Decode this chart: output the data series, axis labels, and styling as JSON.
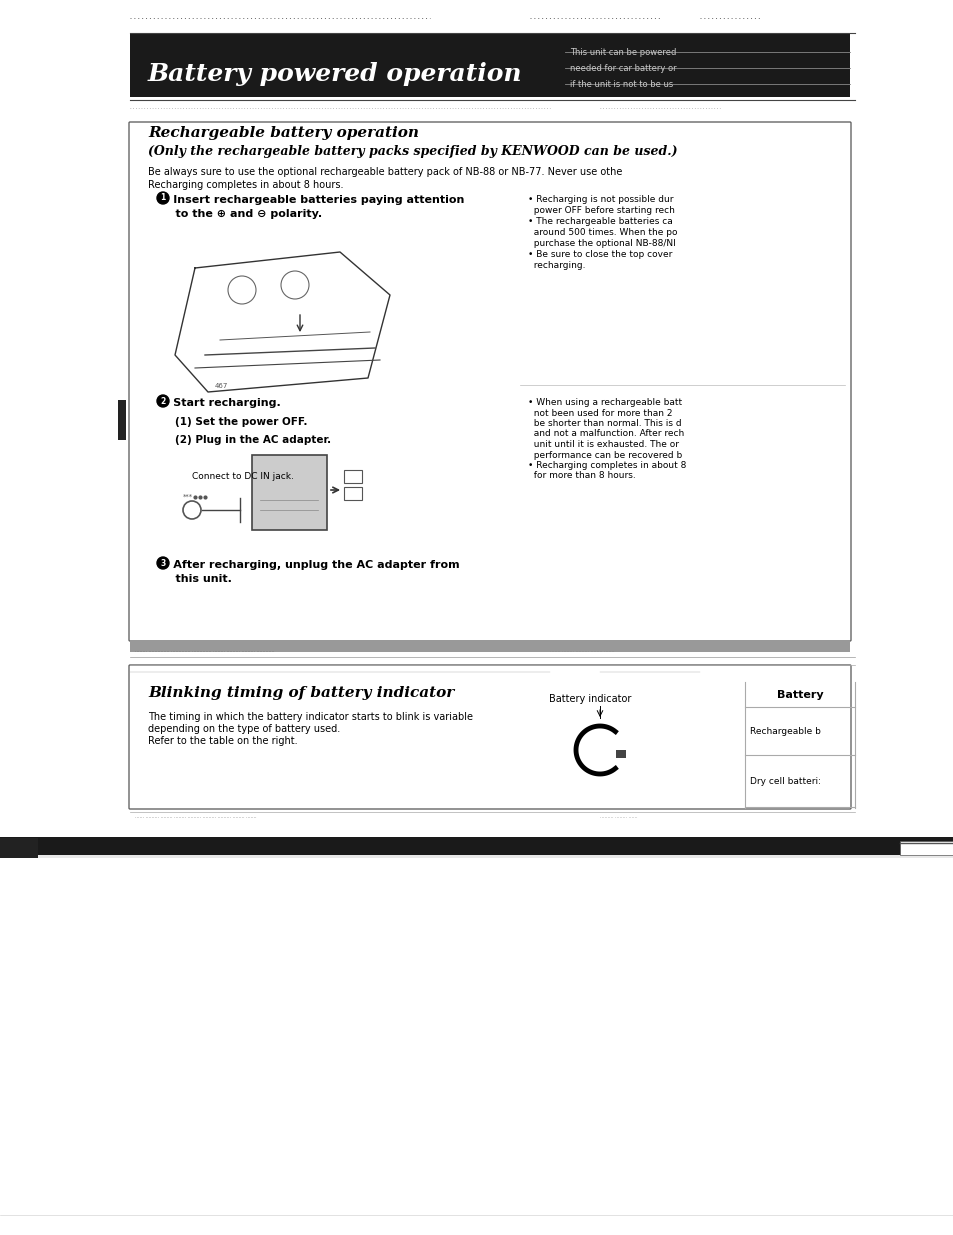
{
  "page_bg": "#e8e8e8",
  "content_bg": "#ffffff",
  "header_bg": "#1a1a1a",
  "header_text": "Battery powered operation",
  "header_note_line1": "This unit can be powered",
  "header_note_line2": "needed for car battery or",
  "header_note_line3": "if the unit is not to be us",
  "section1_title": "Rechargeable battery operation",
  "section1_subtitle": "(Only the rechargeable battery packs specified by KENWOOD can be used.)",
  "section1_intro": "Be always sure to use the optional rechargeable battery pack of NB-88 or NB-77. Never use othe\nRecharging completes in about 8 hours.",
  "step1_text": "① Insert rechargeable batteries paying attention\n    to the ⊕ and ⊖ polarity.",
  "step1_notes_line1": "• Recharging is not possible dur",
  "step1_notes_line2": "  power OFF before starting rech",
  "step1_notes_line3": "• The rechargeable batteries ca",
  "step1_notes_line4": "  around 500 times. When the po",
  "step1_notes_line5": "  purchase the optional NB-88/NI",
  "step1_notes_line6": "• Be sure to close the top cover",
  "step1_notes_line7": "  recharging.",
  "step2_text": "② Start recharging.",
  "step2_sub1": "(1) Set the power OFF.",
  "step2_sub2": "(2) Plug in the AC adapter.",
  "step2_connect": "Connect to DC IN jack.",
  "step2_notes_line1": "• When using a rechargeable batt",
  "step2_notes_line2": "  not been used for more than 2 ",
  "step2_notes_line3": "  be shorter than normal. This is d",
  "step2_notes_line4": "  and not a malfunction. After rech",
  "step2_notes_line5": "  unit until it is exhausted. The or",
  "step2_notes_line6": "  performance can be recovered b",
  "step2_notes_line7": "• Recharging completes in about 8",
  "step2_notes_line8": "  for more than 8 hours.",
  "step3_text1": "③ After recharging, unplug the AC adapter from",
  "step3_text2": "    this unit.",
  "section2_title": "Blinking timing of battery indicator",
  "section2_text1": "The timing in which the battery indicator starts to blink is variable",
  "section2_text2": "depending on the type of battery used.",
  "section2_text3": "Refer to the table on the right.",
  "section2_col1": "Battery indicator",
  "section2_col2_header": "Battery",
  "section2_row1": "Rechargeable b",
  "section2_row2": "Dry cell batteri:",
  "bottom_bar_color": "#1a1a1a"
}
